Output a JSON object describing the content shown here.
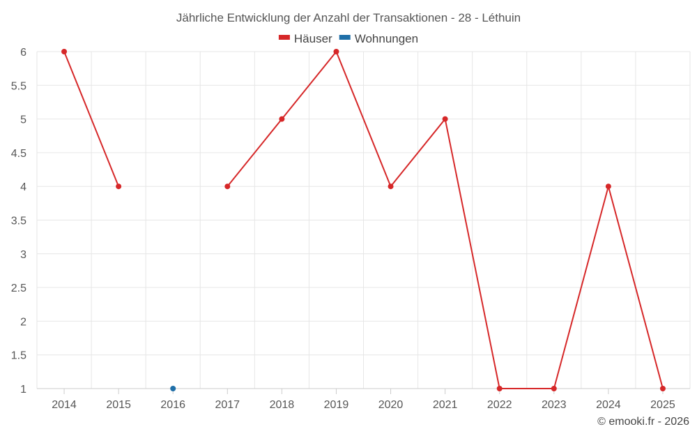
{
  "chart_data": {
    "type": "line",
    "title": "Jährliche Entwicklung der Anzahl der Transaktionen - 28 - Léthuin",
    "categories": [
      "2014",
      "2015",
      "2016",
      "2017",
      "2018",
      "2019",
      "2020",
      "2021",
      "2022",
      "2023",
      "2024",
      "2025"
    ],
    "yticks": [
      "1",
      "1.5",
      "2",
      "2.5",
      "3",
      "3.5",
      "4",
      "4.5",
      "5",
      "5.5",
      "6"
    ],
    "ylim": [
      1,
      6
    ],
    "grid": true,
    "legend_position": "top-center",
    "series": [
      {
        "name": "Häuser",
        "color": "#d62728",
        "values": [
          6,
          4,
          null,
          4,
          5,
          6,
          4,
          5,
          1,
          1,
          4,
          1
        ]
      },
      {
        "name": "Wohnungen",
        "color": "#1f6fa8",
        "values": [
          null,
          null,
          1,
          null,
          null,
          null,
          null,
          null,
          null,
          null,
          null,
          null
        ]
      }
    ],
    "credit": "© emooki.fr - 2026"
  }
}
